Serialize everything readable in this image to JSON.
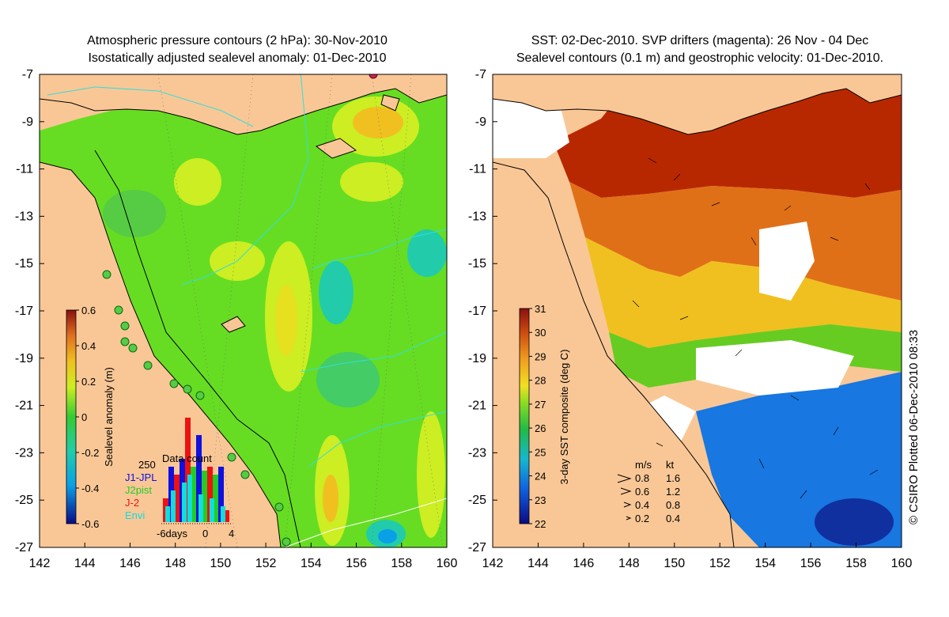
{
  "left_panel": {
    "title_line1": "Atmospheric pressure contours (2 hPa): 30-Nov-2010",
    "title_line2": "Isostatically adjusted sealevel anomaly: 01-Dec-2010",
    "colorbar": {
      "label": "Sealevel anomaly (m)",
      "ticks": [
        "0.6",
        "0.4",
        "0.2",
        "0",
        "-0.2",
        "-0.4",
        "-0.6"
      ],
      "tick_values": [
        0.6,
        0.4,
        0.2,
        0,
        -0.2,
        -0.4,
        -0.6
      ],
      "range": [
        -0.6,
        0.6
      ]
    },
    "inset": {
      "title": "Data count",
      "count_label": "250",
      "legend": [
        {
          "label": "J1-JPL",
          "color": "#1010e0"
        },
        {
          "label": "J2pist",
          "color": "#22cc22"
        },
        {
          "label": "J-2",
          "color": "#ee1111"
        },
        {
          "label": "Envi",
          "color": "#11dddd"
        }
      ],
      "x_labels": [
        "-6days",
        "0",
        "4"
      ]
    }
  },
  "right_panel": {
    "title_line1": "SST: 02-Dec-2010. SVP drifters (magenta): 26 Nov - 04 Dec",
    "title_line2": "Sealevel contours (0.1 m) and geostrophic velocity: 01-Dec-2010.",
    "colorbar": {
      "label": "3-day SST composite (deg C)",
      "ticks": [
        "31",
        "30",
        "29",
        "28",
        "27",
        "26",
        "25",
        "24",
        "23",
        "22"
      ],
      "tick_values": [
        31,
        30,
        29,
        28,
        27,
        26,
        25,
        24,
        23,
        22
      ],
      "range": [
        22,
        31
      ]
    },
    "velocity_legend": {
      "header_ms": "m/s",
      "header_kt": "kt",
      "rows": [
        {
          "ms": "0.8",
          "kt": "1.6"
        },
        {
          "ms": "0.6",
          "kt": "1.2"
        },
        {
          "ms": "0.4",
          "kt": "0.8"
        },
        {
          "ms": "0.2",
          "kt": "0.4"
        }
      ]
    }
  },
  "axes": {
    "lat_labels": [
      "-7",
      "-9",
      "-11",
      "-13",
      "-15",
      "-17",
      "-19",
      "-21",
      "-23",
      "-25",
      "-27"
    ],
    "lon_labels": [
      "142",
      "144",
      "146",
      "148",
      "150",
      "152",
      "154",
      "156",
      "158",
      "160"
    ]
  },
  "credit": "© CSIRO Plotted 06-Dec-2010 08:33",
  "colors": {
    "land": "#f9c796",
    "ssh_background": "#66dd22",
    "sst_warm": "#b82800",
    "sst_cool": "#1877e0"
  }
}
